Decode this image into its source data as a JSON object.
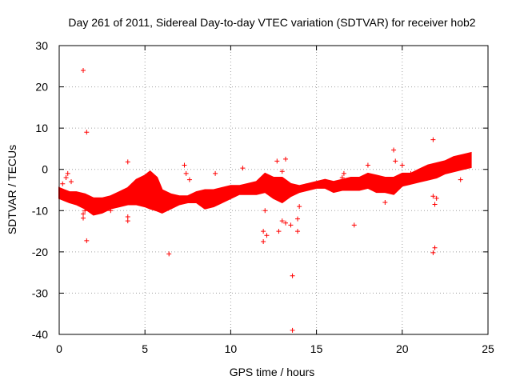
{
  "chart_data": {
    "type": "scatter",
    "title": "Day 261 of 2011, Sidereal Day-to-day VTEC variation (SDTVAR) for receiver hob2",
    "xlabel": "GPS time / hours",
    "ylabel": "SDTVAR / TECUs",
    "xlim": [
      0,
      25
    ],
    "ylim": [
      -40,
      30
    ],
    "xticks": [
      0,
      5,
      10,
      15,
      20,
      25
    ],
    "yticks": [
      -40,
      -30,
      -20,
      -10,
      0,
      10,
      20,
      30
    ],
    "grid": true,
    "marker": "+",
    "color": "#ff0000",
    "band": [
      [
        0.0,
        -4.5,
        -7.0
      ],
      [
        0.3,
        -5.0,
        -7.5
      ],
      [
        0.6,
        -5.5,
        -8.0
      ],
      [
        1.0,
        -5.5,
        -8.5
      ],
      [
        1.5,
        -6.0,
        -9.5
      ],
      [
        2.0,
        -7.0,
        -11.0
      ],
      [
        2.5,
        -7.0,
        -10.5
      ],
      [
        3.0,
        -6.5,
        -9.5
      ],
      [
        3.5,
        -5.5,
        -9.0
      ],
      [
        4.0,
        -4.5,
        -8.5
      ],
      [
        4.5,
        -2.5,
        -8.5
      ],
      [
        5.0,
        -1.5,
        -9.0
      ],
      [
        5.3,
        -0.5,
        -9.5
      ],
      [
        5.7,
        -2.0,
        -10.0
      ],
      [
        6.0,
        -5.0,
        -10.5
      ],
      [
        6.5,
        -6.0,
        -9.5
      ],
      [
        7.0,
        -6.5,
        -8.5
      ],
      [
        7.5,
        -6.5,
        -8.0
      ],
      [
        8.0,
        -5.5,
        -8.0
      ],
      [
        8.5,
        -5.0,
        -9.5
      ],
      [
        9.0,
        -5.0,
        -9.0
      ],
      [
        9.5,
        -4.5,
        -8.0
      ],
      [
        10.0,
        -4.0,
        -7.0
      ],
      [
        10.5,
        -4.0,
        -6.0
      ],
      [
        11.0,
        -3.5,
        -6.0
      ],
      [
        11.5,
        -3.0,
        -6.0
      ],
      [
        12.0,
        -1.0,
        -5.5
      ],
      [
        12.5,
        -2.0,
        -7.0
      ],
      [
        13.0,
        -2.0,
        -8.0
      ],
      [
        13.5,
        -3.5,
        -6.5
      ],
      [
        14.0,
        -4.0,
        -5.5
      ],
      [
        14.5,
        -3.5,
        -5.0
      ],
      [
        15.0,
        -3.0,
        -4.5
      ],
      [
        15.5,
        -2.5,
        -4.5
      ],
      [
        16.0,
        -3.0,
        -5.5
      ],
      [
        16.5,
        -2.5,
        -5.0
      ],
      [
        17.0,
        -2.0,
        -5.0
      ],
      [
        17.5,
        -2.0,
        -5.0
      ],
      [
        18.0,
        -1.0,
        -4.5
      ],
      [
        18.5,
        -1.5,
        -5.5
      ],
      [
        19.0,
        -2.0,
        -5.5
      ],
      [
        19.5,
        -2.0,
        -6.0
      ],
      [
        20.0,
        -1.0,
        -4.0
      ],
      [
        20.5,
        -1.0,
        -3.5
      ],
      [
        21.0,
        0.0,
        -3.0
      ],
      [
        21.5,
        1.0,
        -2.5
      ],
      [
        22.0,
        1.5,
        -2.0
      ],
      [
        22.5,
        2.0,
        -1.0
      ],
      [
        23.0,
        3.0,
        -0.5
      ],
      [
        23.5,
        3.5,
        0.0
      ],
      [
        24.0,
        4.0,
        0.5
      ]
    ],
    "outliers": [
      [
        1.4,
        24
      ],
      [
        1.6,
        9
      ],
      [
        1.6,
        -17.3
      ],
      [
        6.4,
        -20.5
      ],
      [
        13.6,
        -25.8
      ],
      [
        13.6,
        -39
      ],
      [
        11.9,
        -17.5
      ],
      [
        11.9,
        -15
      ],
      [
        12.1,
        -16
      ],
      [
        12.8,
        -15
      ],
      [
        13.0,
        -12.5
      ],
      [
        13.5,
        -13.5
      ],
      [
        13.9,
        -12
      ],
      [
        13.9,
        -15
      ],
      [
        17.2,
        -13.5
      ],
      [
        21.8,
        7.2
      ],
      [
        21.8,
        -20.2
      ],
      [
        21.9,
        -19
      ],
      [
        21.8,
        -6.5
      ],
      [
        22.0,
        -7.0
      ],
      [
        21.9,
        -8.5
      ],
      [
        4.0,
        1.8
      ],
      [
        4.0,
        -11.5
      ],
      [
        4.0,
        -12.5
      ],
      [
        1.4,
        -10.8
      ],
      [
        1.4,
        -11.8
      ],
      [
        1.5,
        -10.0
      ],
      [
        0.4,
        -2.0
      ],
      [
        0.5,
        -1.0
      ],
      [
        0.7,
        -3.0
      ],
      [
        7.3,
        1.0
      ],
      [
        7.4,
        -1.0
      ],
      [
        7.6,
        -2.5
      ],
      [
        9.1,
        -1.0
      ],
      [
        10.7,
        0.3
      ],
      [
        12.7,
        2.0
      ],
      [
        13.0,
        -0.5
      ],
      [
        13.2,
        2.5
      ],
      [
        16.5,
        -2.0
      ],
      [
        16.6,
        -1.0
      ],
      [
        18.0,
        1.0
      ],
      [
        19.0,
        -8.0
      ],
      [
        19.5,
        4.7
      ],
      [
        19.6,
        2.0
      ],
      [
        20.0,
        1.0
      ],
      [
        20.5,
        -1.0
      ],
      [
        23.4,
        -2.5
      ],
      [
        2.2,
        -9.5
      ],
      [
        3.0,
        -10.0
      ],
      [
        14.0,
        -9.0
      ],
      [
        17.0,
        -3.0
      ],
      [
        13.2,
        -13.0
      ],
      [
        12.0,
        -10.0
      ]
    ],
    "scatter_pairs": [
      [
        0.2,
        -3.5
      ],
      [
        1.0,
        -7.0
      ],
      [
        2.1,
        -10.2
      ],
      [
        3.3,
        -8.5
      ],
      [
        4.7,
        -3.5
      ],
      [
        5.5,
        -5.0
      ],
      [
        6.8,
        -7.0
      ],
      [
        8.3,
        -6.5
      ],
      [
        9.7,
        -5.5
      ],
      [
        11.2,
        -4.5
      ],
      [
        12.3,
        -3.5
      ],
      [
        13.4,
        -6.0
      ],
      [
        14.8,
        -4.0
      ],
      [
        16.2,
        -4.5
      ],
      [
        17.8,
        -3.0
      ],
      [
        19.2,
        -3.5
      ],
      [
        20.7,
        -2.5
      ],
      [
        22.4,
        0.5
      ],
      [
        23.8,
        2.0
      ]
    ]
  }
}
